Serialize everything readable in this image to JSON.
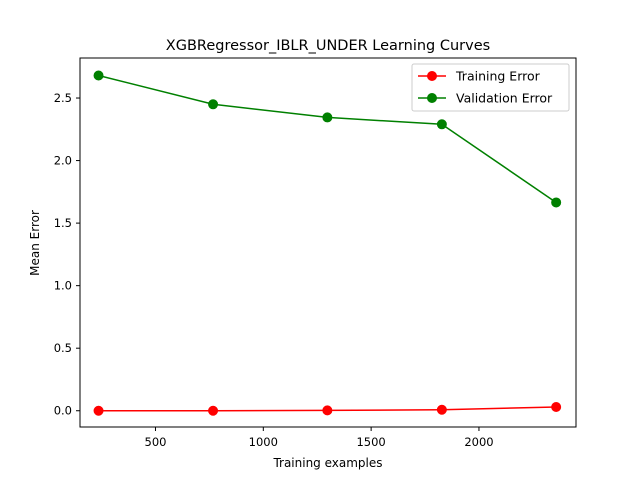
{
  "chart_data": {
    "type": "line",
    "title": "XGBRegressor_IBLR_UNDER Learning Curves",
    "xlabel": "Training examples",
    "ylabel": "Mean Error",
    "xlim": [
      150,
      2450
    ],
    "ylim": [
      -0.13,
      2.82
    ],
    "x_ticks": [
      500,
      1000,
      1500,
      2000
    ],
    "y_ticks": [
      0.0,
      0.5,
      1.0,
      1.5,
      2.0,
      2.5
    ],
    "x_tick_labels": [
      "500",
      "1000",
      "1500",
      "2000"
    ],
    "y_tick_labels": [
      "0.0",
      "0.5",
      "1.0",
      "1.5",
      "2.0",
      "2.5"
    ],
    "grid": false,
    "legend_position": "top-right",
    "x": [
      236,
      767,
      1297,
      1828,
      2358
    ],
    "series": [
      {
        "name": "Training Error",
        "color": "#ff0000",
        "marker": "circle",
        "values": [
          0.0,
          0.0,
          0.003,
          0.008,
          0.03
        ]
      },
      {
        "name": "Validation Error",
        "color": "#008000",
        "marker": "circle",
        "values": [
          2.68,
          2.45,
          2.345,
          2.29,
          1.665
        ]
      }
    ]
  }
}
